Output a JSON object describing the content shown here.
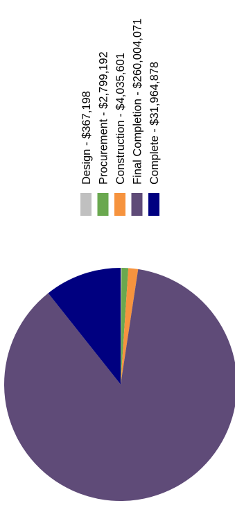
{
  "chart_data": {
    "type": "pie",
    "categories": [
      "Design",
      "Procurement",
      "Construction",
      "Final Completion",
      "Complete"
    ],
    "values": [
      367198,
      2799192,
      4035601,
      260004071,
      31964878
    ],
    "legend_labels": [
      "Design - $367,198",
      "Procurement - $2,799,192",
      "Construction - $4,035,601",
      "Final Completion - $260,004,071",
      "Complete - $31,964,878"
    ],
    "colors": [
      "#c0c0c0",
      "#6aa84f",
      "#f6933e",
      "#5f4b78",
      "#000080"
    ],
    "legend_placement": "top",
    "orientation": "rotated-90-counterclockwise"
  }
}
